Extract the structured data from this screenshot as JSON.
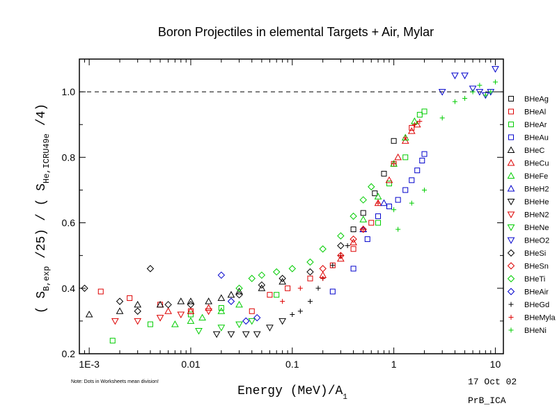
{
  "chart_data": {
    "type": "scatter",
    "title": "Boron Projectiles in elemental Targets + Air, Mylar",
    "xscale": "log",
    "xlim": [
      0.0008,
      12
    ],
    "ylim": [
      0.2,
      1.1
    ],
    "xticks": [
      0.001,
      0.01,
      0.1,
      1,
      10
    ],
    "xtick_labels": [
      "1E-3",
      "0.01",
      "0.1",
      "1",
      "10"
    ],
    "yticks": [
      0.2,
      0.4,
      0.6,
      0.8,
      1.0
    ],
    "ytick_labels": [
      "0.2",
      "0.4",
      "0.6",
      "0.8",
      "1.0"
    ],
    "xlabel": {
      "main": "Energy (MeV)/A",
      "sub": "1"
    },
    "ylabel": {
      "p1": "( S",
      "s1": "B,exp",
      "p2": " /25) / ( S",
      "s2": "He,ICRU49e",
      "p3": " /4)"
    },
    "reference_line_y": 1.0,
    "legend_position": "right",
    "note": "Note: Dots in Worksheets mean division!",
    "date": "17 Oct 02",
    "code": "PrB_ICA",
    "series": [
      {
        "name": "BHeAg",
        "marker": "square",
        "color": "#000000",
        "x": [
          0.65,
          0.8,
          1.0,
          0.5,
          0.4
        ],
        "y": [
          0.69,
          0.75,
          0.85,
          0.63,
          0.58
        ]
      },
      {
        "name": "BHeAl",
        "marker": "square",
        "color": "#dd0000",
        "x": [
          0.0013,
          0.0025,
          0.005,
          0.01,
          0.04,
          0.06,
          0.09,
          0.15,
          0.25,
          0.4,
          0.6,
          1.0,
          1.5
        ],
        "y": [
          0.39,
          0.37,
          0.35,
          0.33,
          0.33,
          0.38,
          0.4,
          0.43,
          0.47,
          0.52,
          0.6,
          0.78,
          0.89
        ]
      },
      {
        "name": "BHeAr",
        "marker": "square",
        "color": "#00cc00",
        "x": [
          0.0017,
          0.004,
          0.01,
          0.02,
          0.07,
          0.7,
          0.9,
          1.3,
          1.8,
          2.0
        ],
        "y": [
          0.24,
          0.29,
          0.32,
          0.34,
          0.38,
          0.6,
          0.72,
          0.8,
          0.93,
          0.94
        ]
      },
      {
        "name": "BHeAu",
        "marker": "square",
        "color": "#0000cc",
        "x": [
          0.25,
          0.4,
          0.55,
          0.7,
          0.9,
          1.1,
          1.3,
          1.5,
          1.7,
          1.9,
          2.0
        ],
        "y": [
          0.39,
          0.46,
          0.55,
          0.62,
          0.65,
          0.67,
          0.7,
          0.73,
          0.76,
          0.79,
          0.81
        ]
      },
      {
        "name": "BHeC",
        "marker": "triangle-up",
        "color": "#000000",
        "x": [
          0.001,
          0.002,
          0.003,
          0.005,
          0.008,
          0.01,
          0.015,
          0.02,
          0.025,
          0.03,
          0.05,
          0.08
        ],
        "y": [
          0.32,
          0.33,
          0.35,
          0.35,
          0.36,
          0.36,
          0.36,
          0.37,
          0.38,
          0.39,
          0.4,
          0.42
        ]
      },
      {
        "name": "BHeCu",
        "marker": "triangle-up",
        "color": "#dd0000",
        "x": [
          0.006,
          0.01,
          0.015,
          0.2,
          0.3,
          0.4,
          0.5,
          0.7,
          0.9,
          1.1,
          1.3,
          1.5,
          1.7
        ],
        "y": [
          0.33,
          0.33,
          0.34,
          0.44,
          0.49,
          0.54,
          0.58,
          0.66,
          0.73,
          0.8,
          0.85,
          0.88,
          0.9
        ]
      },
      {
        "name": "BHeFe",
        "marker": "triangle-up",
        "color": "#00cc00",
        "x": [
          0.007,
          0.01,
          0.013,
          0.02,
          0.03,
          0.5,
          0.7,
          1.0,
          1.3,
          1.6
        ],
        "y": [
          0.29,
          0.3,
          0.31,
          0.33,
          0.35,
          0.61,
          0.68,
          0.78,
          0.86,
          0.91
        ]
      },
      {
        "name": "BHeH2",
        "marker": "triangle-up",
        "color": "#0000cc",
        "x": [
          0.5,
          0.8
        ],
        "y": [
          0.58,
          0.66
        ]
      },
      {
        "name": "BHeHe",
        "marker": "triangle-down",
        "color": "#000000",
        "x": [
          0.018,
          0.025,
          0.035,
          0.045,
          0.06,
          0.08
        ],
        "y": [
          0.26,
          0.26,
          0.26,
          0.26,
          0.28,
          0.3
        ]
      },
      {
        "name": "BHeN2",
        "marker": "triangle-down",
        "color": "#dd0000",
        "x": [
          0.0018,
          0.003,
          0.005,
          0.008,
          0.015
        ],
        "y": [
          0.3,
          0.3,
          0.31,
          0.32,
          0.33
        ]
      },
      {
        "name": "BHeNe",
        "marker": "triangle-down",
        "color": "#00cc00",
        "x": [
          0.012,
          0.02,
          0.03,
          0.04
        ],
        "y": [
          0.27,
          0.28,
          0.29,
          0.3
        ]
      },
      {
        "name": "BHeO2",
        "marker": "triangle-down",
        "color": "#0000cc",
        "x": [
          3,
          4,
          5,
          6,
          7,
          8,
          9,
          10
        ],
        "y": [
          1.0,
          1.05,
          1.05,
          1.01,
          1.0,
          0.99,
          1.0,
          1.07
        ]
      },
      {
        "name": "BHeSi",
        "marker": "diamond",
        "color": "#000000",
        "x": [
          0.0009,
          0.002,
          0.003,
          0.004,
          0.006,
          0.01,
          0.03,
          0.05,
          0.08,
          0.15,
          0.3
        ],
        "y": [
          0.4,
          0.36,
          0.33,
          0.46,
          0.35,
          0.35,
          0.38,
          0.41,
          0.43,
          0.45,
          0.53
        ]
      },
      {
        "name": "BHeSn",
        "marker": "diamond",
        "color": "#dd0000",
        "x": [
          0.2,
          0.3,
          0.4,
          0.5
        ],
        "y": [
          0.46,
          0.5,
          0.55,
          0.58
        ]
      },
      {
        "name": "BHeTi",
        "marker": "diamond",
        "color": "#00cc00",
        "x": [
          0.03,
          0.04,
          0.05,
          0.07,
          0.1,
          0.15,
          0.2,
          0.3,
          0.4,
          0.5,
          0.6
        ],
        "y": [
          0.4,
          0.43,
          0.44,
          0.45,
          0.46,
          0.48,
          0.52,
          0.56,
          0.62,
          0.67,
          0.71
        ]
      },
      {
        "name": "BHeAir",
        "marker": "diamond",
        "color": "#0000cc",
        "x": [
          0.02,
          0.025,
          0.035,
          0.045
        ],
        "y": [
          0.44,
          0.36,
          0.3,
          0.31
        ]
      },
      {
        "name": "BHeGd",
        "marker": "plus",
        "color": "#000000",
        "x": [
          0.1,
          0.12,
          0.15,
          0.18,
          0.2,
          0.25,
          0.3,
          0.35
        ],
        "y": [
          0.32,
          0.33,
          0.36,
          0.4,
          0.43,
          0.47,
          0.5,
          0.53
        ]
      },
      {
        "name": "BHeMylar",
        "label": "BHeMyla",
        "marker": "plus",
        "color": "#dd0000",
        "x": [
          0.08,
          0.12,
          0.2,
          0.3,
          0.5,
          0.7,
          1.0,
          1.3,
          1.6,
          1.8
        ],
        "y": [
          0.36,
          0.4,
          0.43,
          0.5,
          0.58,
          0.66,
          0.78,
          0.86,
          0.9,
          0.91
        ]
      },
      {
        "name": "BHeNi",
        "marker": "plus",
        "color": "#00cc00",
        "x": [
          1.0,
          1.1,
          1.5,
          2.0,
          3.0,
          4.0,
          5.0,
          6.0,
          7.0,
          8.0,
          9.0,
          10.0
        ],
        "y": [
          0.64,
          0.58,
          0.66,
          0.7,
          0.92,
          0.97,
          0.98,
          1.0,
          1.02,
          0.99,
          1.0,
          1.03
        ]
      }
    ]
  }
}
